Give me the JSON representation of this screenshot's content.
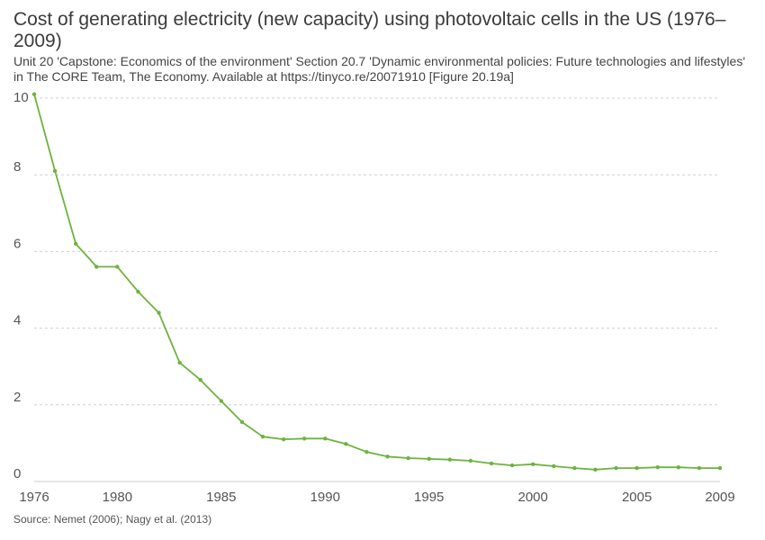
{
  "header": {
    "title": "Cost of generating electricity (new capacity) using photovoltaic cells in the US (1976–2009)",
    "subtitle": "Unit 20 'Capstone: Economics of the environment' Section 20.7 'Dynamic environmental policies: Future technologies and lifestyles' in The CORE Team, The Economy. Available at https://tinyco.re/20071910 [Figure 20.19a]"
  },
  "footer": {
    "source": "Source: Nemet (2006); Nagy et al. (2013)"
  },
  "chart_data": {
    "type": "line",
    "title": "Cost of generating electricity (new capacity) using photovoltaic cells in the US (1976–2009)",
    "xlabel": "",
    "ylabel": "",
    "xlim": [
      1976,
      2009
    ],
    "ylim": [
      0,
      10
    ],
    "x_ticks": [
      1976,
      1980,
      1985,
      1990,
      1995,
      2000,
      2005,
      2009
    ],
    "y_ticks": [
      0,
      2,
      4,
      6,
      8,
      10
    ],
    "grid": "horizontal dashed",
    "legend": "none",
    "colors": {
      "line": "#6db33f",
      "grid": "#d0d0d0",
      "axis": "#cccccc"
    },
    "series": [
      {
        "x": [
          1976,
          1977,
          1978,
          1979,
          1980,
          1981,
          1982,
          1983,
          1984,
          1985,
          1986,
          1987,
          1988,
          1989,
          1990,
          1991,
          1992,
          1993,
          1994,
          1995,
          1996,
          1997,
          1998,
          1999,
          2000,
          2001,
          2002,
          2003,
          2004,
          2005,
          2006,
          2007,
          2008,
          2009
        ],
        "y": [
          10.1,
          8.1,
          6.2,
          5.6,
          5.6,
          4.95,
          4.4,
          3.1,
          2.65,
          2.1,
          1.55,
          1.17,
          1.1,
          1.12,
          1.12,
          0.98,
          0.77,
          0.65,
          0.61,
          0.59,
          0.57,
          0.54,
          0.47,
          0.42,
          0.45,
          0.4,
          0.35,
          0.31,
          0.35,
          0.35,
          0.37,
          0.37,
          0.35,
          0.35
        ]
      }
    ]
  }
}
